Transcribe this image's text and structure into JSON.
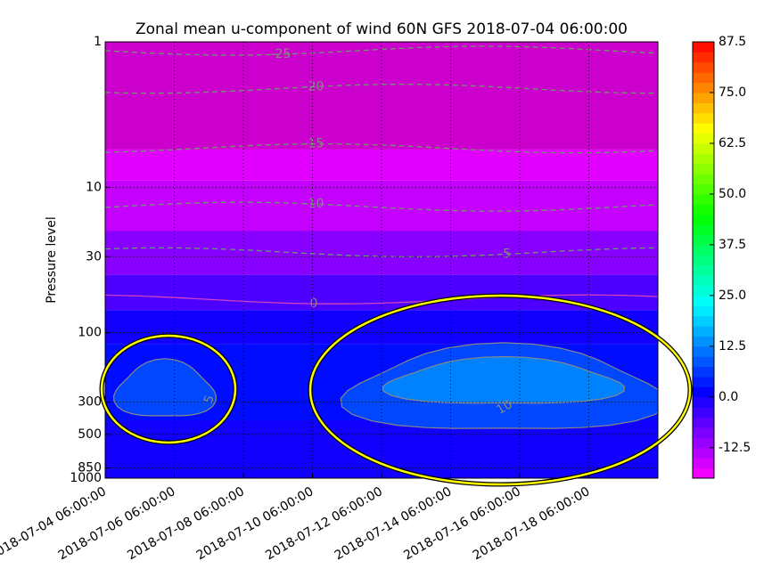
{
  "chart_data": {
    "type": "contourf",
    "title": "Zonal mean u-component of wind 60N GFS 2018-07-04 06:00:00",
    "ylabel": "Pressure level",
    "ylim": [
      1000,
      1
    ],
    "ylog": true,
    "yticks": [
      1,
      10,
      30,
      100,
      300,
      500,
      850,
      1000
    ],
    "xlim": [
      "2018-07-04 06:00:00",
      "2018-07-20 06:00:00"
    ],
    "xticks": [
      "2018-07-04 06:00:00",
      "2018-07-06 06:00:00",
      "2018-07-08 06:00:00",
      "2018-07-10 06:00:00",
      "2018-07-12 06:00:00",
      "2018-07-14 06:00:00",
      "2018-07-16 06:00:00",
      "2018-07-18 06:00:00"
    ],
    "grid": true,
    "clim": [
      -20,
      87.5
    ],
    "cticks": [
      -12.5,
      {
        "value": 0,
        "label": "0.0"
      },
      12.5,
      {
        "value": 25,
        "label": "25.0"
      },
      37.5,
      {
        "value": 50,
        "label": "50.0"
      },
      62.5,
      {
        "value": 75,
        "label": "75.0"
      },
      87.5
    ],
    "field": [
      {
        "p": [
          1,
          5.5
        ],
        "value": -22.5
      },
      {
        "p": [
          5.5,
          9
        ],
        "value": -17.5
      },
      {
        "p": [
          9,
          20
        ],
        "value": -15
      },
      {
        "p": [
          20,
          40
        ],
        "value": -10
      },
      {
        "p": [
          40,
          70
        ],
        "value": -5
      },
      {
        "p": [
          70,
          120
        ],
        "value": 0
      },
      {
        "p": [
          120,
          400
        ],
        "value": 2.5
      },
      {
        "p": [
          400,
          1000
        ],
        "value": 0
      }
    ],
    "contours": [
      {
        "level": -25,
        "p": 1.15
      },
      {
        "level": -20,
        "p": 2.1
      },
      {
        "level": -15,
        "p": 5.4
      },
      {
        "level": -10,
        "p": 13.6
      },
      {
        "level": -5,
        "p": 28
      },
      {
        "level": 0,
        "p": 59
      },
      {
        "level": 5,
        "p": 250
      },
      {
        "level": 10,
        "p": 220
      }
    ]
  }
}
